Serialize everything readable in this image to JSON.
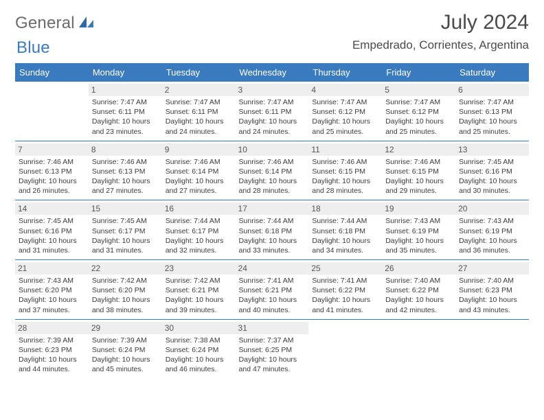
{
  "brand": {
    "part1": "General",
    "part2": "Blue",
    "logo_color": "#3a7bbf",
    "text_gray": "#6b6b6b"
  },
  "title": "July 2024",
  "location": "Empedrado, Corrientes, Argentina",
  "colors": {
    "header_bg": "#3a7bbf",
    "header_text": "#ffffff",
    "day_bg": "#eeeeee",
    "border": "#3a7bbf",
    "body_text": "#3b3b3b",
    "page_bg": "#ffffff"
  },
  "weekday_labels": [
    "Sunday",
    "Monday",
    "Tuesday",
    "Wednesday",
    "Thursday",
    "Friday",
    "Saturday"
  ],
  "weeks": [
    [
      null,
      {
        "n": "1",
        "sunrise": "7:47 AM",
        "sunset": "6:11 PM",
        "daylight": "10 hours and 23 minutes."
      },
      {
        "n": "2",
        "sunrise": "7:47 AM",
        "sunset": "6:11 PM",
        "daylight": "10 hours and 24 minutes."
      },
      {
        "n": "3",
        "sunrise": "7:47 AM",
        "sunset": "6:11 PM",
        "daylight": "10 hours and 24 minutes."
      },
      {
        "n": "4",
        "sunrise": "7:47 AM",
        "sunset": "6:12 PM",
        "daylight": "10 hours and 25 minutes."
      },
      {
        "n": "5",
        "sunrise": "7:47 AM",
        "sunset": "6:12 PM",
        "daylight": "10 hours and 25 minutes."
      },
      {
        "n": "6",
        "sunrise": "7:47 AM",
        "sunset": "6:13 PM",
        "daylight": "10 hours and 25 minutes."
      }
    ],
    [
      {
        "n": "7",
        "sunrise": "7:46 AM",
        "sunset": "6:13 PM",
        "daylight": "10 hours and 26 minutes."
      },
      {
        "n": "8",
        "sunrise": "7:46 AM",
        "sunset": "6:13 PM",
        "daylight": "10 hours and 27 minutes."
      },
      {
        "n": "9",
        "sunrise": "7:46 AM",
        "sunset": "6:14 PM",
        "daylight": "10 hours and 27 minutes."
      },
      {
        "n": "10",
        "sunrise": "7:46 AM",
        "sunset": "6:14 PM",
        "daylight": "10 hours and 28 minutes."
      },
      {
        "n": "11",
        "sunrise": "7:46 AM",
        "sunset": "6:15 PM",
        "daylight": "10 hours and 28 minutes."
      },
      {
        "n": "12",
        "sunrise": "7:46 AM",
        "sunset": "6:15 PM",
        "daylight": "10 hours and 29 minutes."
      },
      {
        "n": "13",
        "sunrise": "7:45 AM",
        "sunset": "6:16 PM",
        "daylight": "10 hours and 30 minutes."
      }
    ],
    [
      {
        "n": "14",
        "sunrise": "7:45 AM",
        "sunset": "6:16 PM",
        "daylight": "10 hours and 31 minutes."
      },
      {
        "n": "15",
        "sunrise": "7:45 AM",
        "sunset": "6:17 PM",
        "daylight": "10 hours and 31 minutes."
      },
      {
        "n": "16",
        "sunrise": "7:44 AM",
        "sunset": "6:17 PM",
        "daylight": "10 hours and 32 minutes."
      },
      {
        "n": "17",
        "sunrise": "7:44 AM",
        "sunset": "6:18 PM",
        "daylight": "10 hours and 33 minutes."
      },
      {
        "n": "18",
        "sunrise": "7:44 AM",
        "sunset": "6:18 PM",
        "daylight": "10 hours and 34 minutes."
      },
      {
        "n": "19",
        "sunrise": "7:43 AM",
        "sunset": "6:19 PM",
        "daylight": "10 hours and 35 minutes."
      },
      {
        "n": "20",
        "sunrise": "7:43 AM",
        "sunset": "6:19 PM",
        "daylight": "10 hours and 36 minutes."
      }
    ],
    [
      {
        "n": "21",
        "sunrise": "7:43 AM",
        "sunset": "6:20 PM",
        "daylight": "10 hours and 37 minutes."
      },
      {
        "n": "22",
        "sunrise": "7:42 AM",
        "sunset": "6:20 PM",
        "daylight": "10 hours and 38 minutes."
      },
      {
        "n": "23",
        "sunrise": "7:42 AM",
        "sunset": "6:21 PM",
        "daylight": "10 hours and 39 minutes."
      },
      {
        "n": "24",
        "sunrise": "7:41 AM",
        "sunset": "6:21 PM",
        "daylight": "10 hours and 40 minutes."
      },
      {
        "n": "25",
        "sunrise": "7:41 AM",
        "sunset": "6:22 PM",
        "daylight": "10 hours and 41 minutes."
      },
      {
        "n": "26",
        "sunrise": "7:40 AM",
        "sunset": "6:22 PM",
        "daylight": "10 hours and 42 minutes."
      },
      {
        "n": "27",
        "sunrise": "7:40 AM",
        "sunset": "6:23 PM",
        "daylight": "10 hours and 43 minutes."
      }
    ],
    [
      {
        "n": "28",
        "sunrise": "7:39 AM",
        "sunset": "6:23 PM",
        "daylight": "10 hours and 44 minutes."
      },
      {
        "n": "29",
        "sunrise": "7:39 AM",
        "sunset": "6:24 PM",
        "daylight": "10 hours and 45 minutes."
      },
      {
        "n": "30",
        "sunrise": "7:38 AM",
        "sunset": "6:24 PM",
        "daylight": "10 hours and 46 minutes."
      },
      {
        "n": "31",
        "sunrise": "7:37 AM",
        "sunset": "6:25 PM",
        "daylight": "10 hours and 47 minutes."
      },
      null,
      null,
      null
    ]
  ],
  "labels": {
    "sunrise": "Sunrise:",
    "sunset": "Sunset:",
    "daylight": "Daylight:"
  }
}
